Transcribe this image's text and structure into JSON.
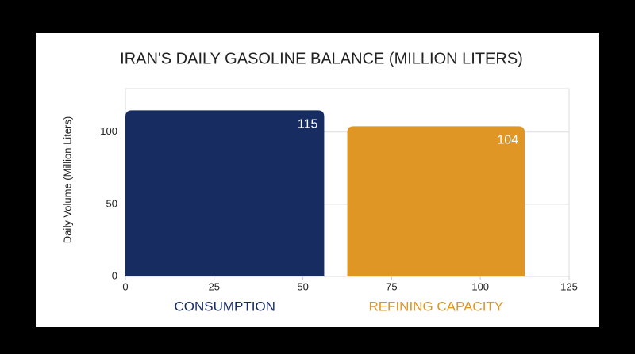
{
  "chart_data": {
    "type": "bar",
    "title": "IRAN'S DAILY GASOLINE BALANCE (MILLION LITERS)",
    "ylabel": "Daily Volume (Million Liters)",
    "categories": [
      "CONSUMPTION",
      "REFINING CAPACITY"
    ],
    "values": [
      115,
      104
    ],
    "colors": [
      "#172d62",
      "#df9624"
    ],
    "bar_x": [
      [
        0,
        56
      ],
      [
        62.5,
        112.5
      ]
    ],
    "xlim": [
      0,
      125
    ],
    "xticks": [
      0,
      25,
      50,
      75,
      100,
      125
    ],
    "ylim": [
      0,
      130
    ],
    "yticks": [
      0,
      50,
      100
    ],
    "grid": true
  }
}
